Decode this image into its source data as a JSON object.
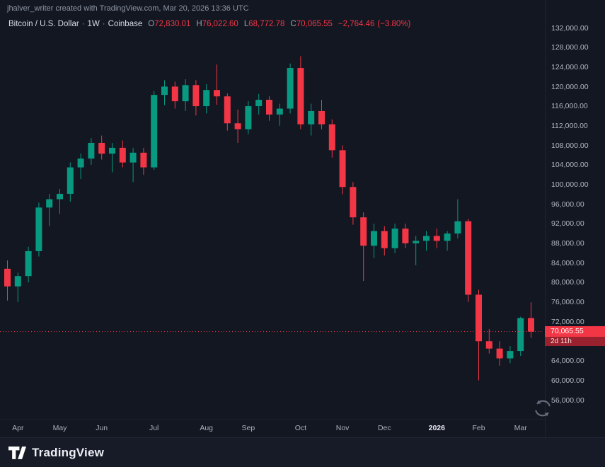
{
  "attribution": "jhalver_writer created with TradingView.com, Mar 20, 2026 13:36 UTC",
  "legend": {
    "symbol": "Bitcoin / U.S. Dollar",
    "separator": "·",
    "interval": "1W",
    "exchange": "Coinbase",
    "ohlc": [
      {
        "k": "O",
        "v": "72,830.01"
      },
      {
        "k": "H",
        "v": "76,022.60"
      },
      {
        "k": "L",
        "v": "68,772.78"
      },
      {
        "k": "C",
        "v": "70,065.55"
      }
    ],
    "change": "−2,764.46",
    "change_pct": "(−3.80%)"
  },
  "price_tag": {
    "price": "70,065.55",
    "countdown": "2d 11h"
  },
  "footer": {
    "brand": "TradingView"
  },
  "chart_data": {
    "type": "candlestick",
    "title": "Bitcoin / U.S. Dollar · 1W · Coinbase",
    "interval": "1W",
    "exchange": "Coinbase",
    "last_price": 70065.55,
    "change": -2764.46,
    "change_pct": -3.8,
    "colors": {
      "up": "#089981",
      "down": "#f23645",
      "price_line": "#f23645"
    },
    "y_axis": {
      "min": 56000,
      "max": 132000,
      "tick_step": 4000,
      "ticks": [
        132000,
        128000,
        124000,
        120000,
        116000,
        112000,
        108000,
        104000,
        100000,
        96000,
        92000,
        88000,
        84000,
        80000,
        76000,
        72000,
        68000,
        64000,
        60000,
        56000
      ]
    },
    "x_axis": {
      "ticks": [
        {
          "label": "Apr",
          "i": 1
        },
        {
          "label": "May",
          "i": 5
        },
        {
          "label": "Jun",
          "i": 9
        },
        {
          "label": "Jul",
          "i": 14
        },
        {
          "label": "Aug",
          "i": 19
        },
        {
          "label": "Sep",
          "i": 23
        },
        {
          "label": "Oct",
          "i": 28
        },
        {
          "label": "Nov",
          "i": 32
        },
        {
          "label": "Dec",
          "i": 36
        },
        {
          "label": "2026",
          "i": 41,
          "major": true
        },
        {
          "label": "Feb",
          "i": 45
        },
        {
          "label": "Mar",
          "i": 49
        }
      ]
    },
    "candles": [
      [
        82900,
        84600,
        76400,
        79300
      ],
      [
        79300,
        82100,
        76100,
        81400
      ],
      [
        81400,
        87400,
        80100,
        86500
      ],
      [
        86500,
        96400,
        85400,
        95400
      ],
      [
        95400,
        98200,
        91600,
        97100
      ],
      [
        97100,
        99200,
        94100,
        98200
      ],
      [
        98200,
        104600,
        96600,
        103600
      ],
      [
        103600,
        106400,
        101200,
        105400
      ],
      [
        105400,
        109600,
        104100,
        108600
      ],
      [
        108600,
        110100,
        105200,
        106400
      ],
      [
        106400,
        108600,
        102600,
        107600
      ],
      [
        107600,
        109100,
        103600,
        104600
      ],
      [
        104600,
        107600,
        100600,
        106600
      ],
      [
        106600,
        107600,
        102100,
        103600
      ],
      [
        103600,
        119200,
        103100,
        118400
      ],
      [
        118400,
        121400,
        116300,
        120100
      ],
      [
        120100,
        121100,
        115600,
        117100
      ],
      [
        117100,
        121600,
        115100,
        120400
      ],
      [
        120400,
        121400,
        114200,
        116100
      ],
      [
        116100,
        120600,
        114600,
        119400
      ],
      [
        119400,
        124600,
        116400,
        118100
      ],
      [
        118100,
        118700,
        111100,
        112600
      ],
      [
        112600,
        115400,
        108600,
        111400
      ],
      [
        111400,
        117100,
        110400,
        116100
      ],
      [
        116100,
        118600,
        114400,
        117400
      ],
      [
        117400,
        118100,
        113100,
        114400
      ],
      [
        114400,
        116600,
        112100,
        115600
      ],
      [
        115600,
        124800,
        114600,
        123900
      ],
      [
        123900,
        126300,
        111400,
        112400
      ],
      [
        112400,
        116600,
        110100,
        115100
      ],
      [
        115100,
        117400,
        111400,
        112400
      ],
      [
        112400,
        113400,
        105600,
        107100
      ],
      [
        107100,
        108100,
        98100,
        99600
      ],
      [
        99600,
        100600,
        91900,
        93400
      ],
      [
        93400,
        94400,
        80400,
        87600
      ],
      [
        87600,
        92100,
        85100,
        90600
      ],
      [
        90600,
        91600,
        85600,
        87100
      ],
      [
        87100,
        92100,
        86100,
        91100
      ],
      [
        91100,
        92100,
        87100,
        88100
      ],
      [
        88100,
        89600,
        83600,
        88600
      ],
      [
        88600,
        90600,
        86600,
        89600
      ],
      [
        89600,
        91100,
        87100,
        88600
      ],
      [
        88600,
        90600,
        86600,
        90100
      ],
      [
        90100,
        97100,
        89100,
        92600
      ],
      [
        92600,
        93100,
        76100,
        77600
      ],
      [
        77600,
        78600,
        60100,
        68100
      ],
      [
        68100,
        70600,
        65600,
        66600
      ],
      [
        66600,
        68100,
        63100,
        64600
      ],
      [
        64600,
        67100,
        63600,
        66100
      ],
      [
        66100,
        73100,
        65100,
        72830
      ],
      [
        72830.01,
        76022.6,
        68772.78,
        70065.55
      ]
    ]
  }
}
